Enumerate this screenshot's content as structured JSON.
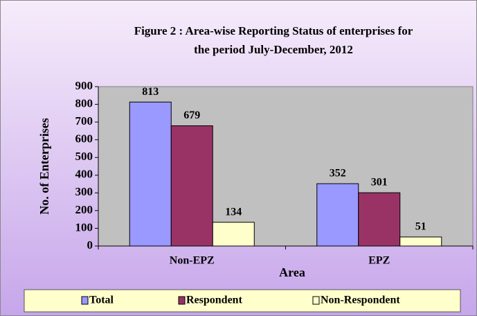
{
  "chart_data": {
    "type": "bar",
    "title": [
      "Figure 2 : Area-wise Reporting Status of enterprises for",
      "the  period  July-December, 2012"
    ],
    "y_label": "No. of Enterprises",
    "x_label": "Area",
    "categories": [
      "Non-EPZ",
      "EPZ"
    ],
    "series": [
      {
        "name": "Total",
        "color": "#9999ff",
        "values": [
          813,
          352
        ]
      },
      {
        "name": "Respondent",
        "color": "#993366",
        "values": [
          679,
          301
        ]
      },
      {
        "name": "Non-Respondent",
        "color": "#ffffcc",
        "values": [
          134,
          51
        ]
      }
    ],
    "ylim": [
      0,
      900
    ],
    "yticks": [
      0,
      100,
      200,
      300,
      400,
      500,
      600,
      700,
      800,
      900
    ],
    "legend": "bottom"
  }
}
